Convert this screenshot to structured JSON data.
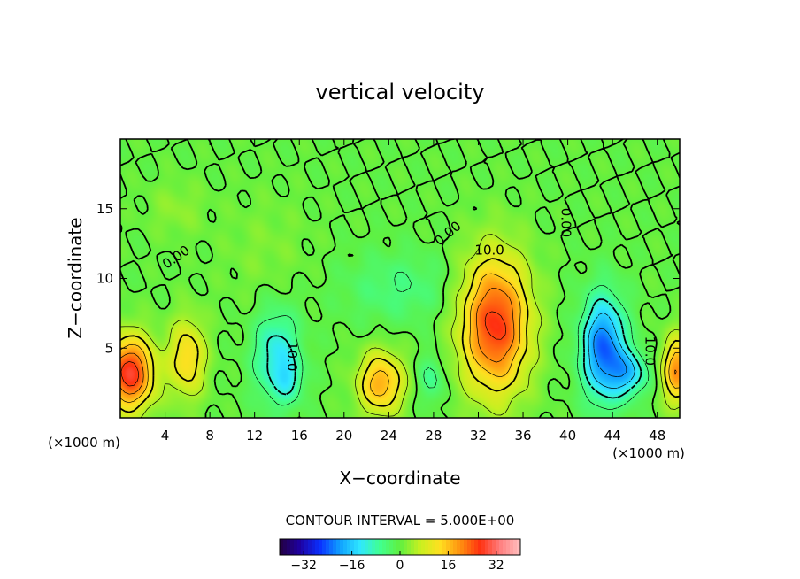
{
  "chart_data": {
    "type": "heatmap",
    "title": "vertical velocity",
    "xlabel": "X−coordinate",
    "ylabel": "Z−coordinate",
    "x_unit_left": "(×1000 m)",
    "x_unit_right": "(×1000 m)",
    "xlim": [
      0,
      50
    ],
    "ylim": [
      0,
      20
    ],
    "x_ticks": [
      4,
      8,
      12,
      16,
      20,
      24,
      28,
      32,
      36,
      40,
      44,
      48
    ],
    "x_tick_labels": [
      "4",
      "8",
      "12",
      "16",
      "20",
      "24",
      "28",
      "32",
      "36",
      "40",
      "44",
      "48"
    ],
    "y_ticks": [
      5,
      10,
      15
    ],
    "y_tick_labels": [
      "5",
      "10",
      "15"
    ],
    "contour_interval_text": "CONTOUR INTERVAL = 5.000E+00",
    "contour_labels": [
      {
        "text": "0.00",
        "x": 5,
        "z": 11.5,
        "angle": -35
      },
      {
        "text": "10.0",
        "x": 15.3,
        "z": 4.4,
        "angle": 90
      },
      {
        "text": "0.00",
        "x": 29.3,
        "z": 13.2,
        "angle": -40
      },
      {
        "text": "10.0",
        "x": 33.0,
        "z": 12.0,
        "angle": 0
      },
      {
        "text": "0.00",
        "x": 39.8,
        "z": 14.0,
        "angle": 90
      },
      {
        "text": "10.0",
        "x": 47.3,
        "z": 4.8,
        "angle": 90
      }
    ],
    "features": [
      {
        "x": 0.8,
        "z": 3.2,
        "amplitude": 28,
        "sx": 2.2,
        "sz": 2.6
      },
      {
        "x": 6.0,
        "z": 4.3,
        "amplitude": 14,
        "sx": 1.6,
        "sz": 2.8
      },
      {
        "x": 14.0,
        "z": 4.4,
        "amplitude": -13,
        "sx": 2.0,
        "sz": 3.3
      },
      {
        "x": 15.2,
        "z": 2.7,
        "amplitude": -6,
        "sx": 1.2,
        "sz": 1.5
      },
      {
        "x": 23.3,
        "z": 2.5,
        "amplitude": 18,
        "sx": 2.0,
        "sz": 2.2
      },
      {
        "x": 27.8,
        "z": 2.8,
        "amplitude": -7,
        "sx": 1.1,
        "sz": 1.7
      },
      {
        "x": 33.5,
        "z": 6.7,
        "amplitude": 27,
        "sx": 3.0,
        "sz": 4.8
      },
      {
        "x": 43.2,
        "z": 5.0,
        "amplitude": -24,
        "sx": 1.9,
        "sz": 3.6
      },
      {
        "x": 45.5,
        "z": 3.2,
        "amplitude": -14,
        "sx": 1.6,
        "sz": 1.6
      },
      {
        "x": 49.8,
        "z": 3.4,
        "amplitude": 20,
        "sx": 1.3,
        "sz": 2.4
      },
      {
        "x": 25.0,
        "z": 9.3,
        "amplitude": -5,
        "sx": 5.0,
        "sz": 2.5
      },
      {
        "x": 5.0,
        "z": 15.0,
        "amplitude": 3,
        "sx": 2.5,
        "sz": 2.0
      },
      {
        "x": 13.0,
        "z": 12.0,
        "amplitude": 2,
        "sx": 4.0,
        "sz": 4.0
      }
    ],
    "colorbar": {
      "min": -40,
      "max": 40,
      "ticks": [
        -32,
        -16,
        0,
        16,
        32
      ],
      "tick_labels": [
        "−32",
        "−16",
        "0",
        "16",
        "32"
      ]
    },
    "colormap": [
      "#240040",
      "#1e00a0",
      "#0a30ff",
      "#10a0ff",
      "#30e8ff",
      "#40ff90",
      "#60f040",
      "#c8f020",
      "#ffe020",
      "#ff9010",
      "#ff3010",
      "#ff8080",
      "#ffc0c0"
    ],
    "colors": {
      "background": "#ffffff",
      "contour": "#000000",
      "frame": "#000000"
    }
  }
}
